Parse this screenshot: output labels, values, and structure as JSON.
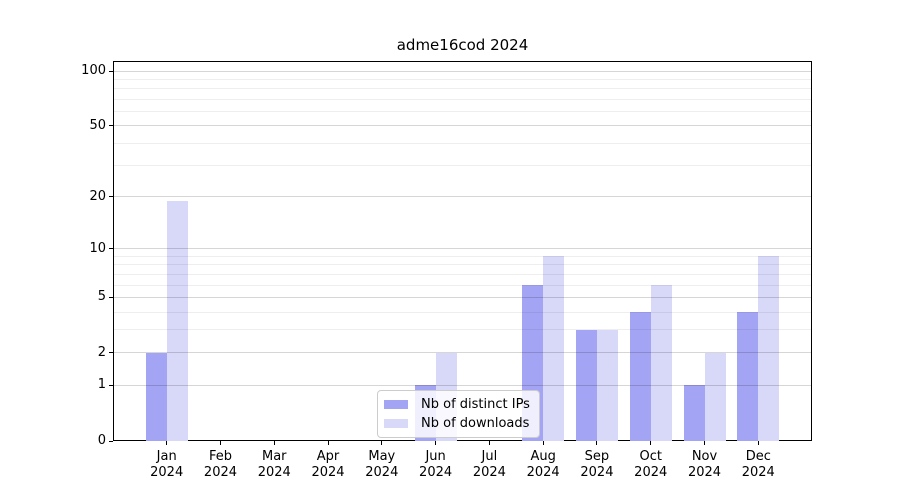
{
  "chart_data": {
    "type": "bar",
    "title": "adme16cod 2024",
    "categories": [
      "Jan",
      "Feb",
      "Mar",
      "Apr",
      "May",
      "Jun",
      "Jul",
      "Aug",
      "Sep",
      "Oct",
      "Nov",
      "Dec"
    ],
    "year_label": "2024",
    "series": [
      {
        "name": "Nb of distinct IPs",
        "color": "#a4a4f4",
        "values": [
          2,
          0,
          0,
          0,
          0,
          1,
          0,
          6,
          3,
          4,
          1,
          4
        ]
      },
      {
        "name": "Nb of downloads",
        "color": "#d8d8f8",
        "values": [
          19,
          0,
          0,
          0,
          0,
          2,
          0,
          9,
          3,
          6,
          2,
          9
        ]
      }
    ],
    "xlabel": "",
    "ylabel": "",
    "yscale": "log1p",
    "yticks": [
      0,
      1,
      2,
      5,
      10,
      20,
      50,
      100
    ],
    "minor_gridlines": [
      3,
      4,
      6,
      7,
      8,
      9,
      30,
      40,
      60,
      70,
      80,
      90
    ],
    "ylim": [
      0,
      112
    ],
    "grid": true,
    "legend_position": "lower center"
  }
}
